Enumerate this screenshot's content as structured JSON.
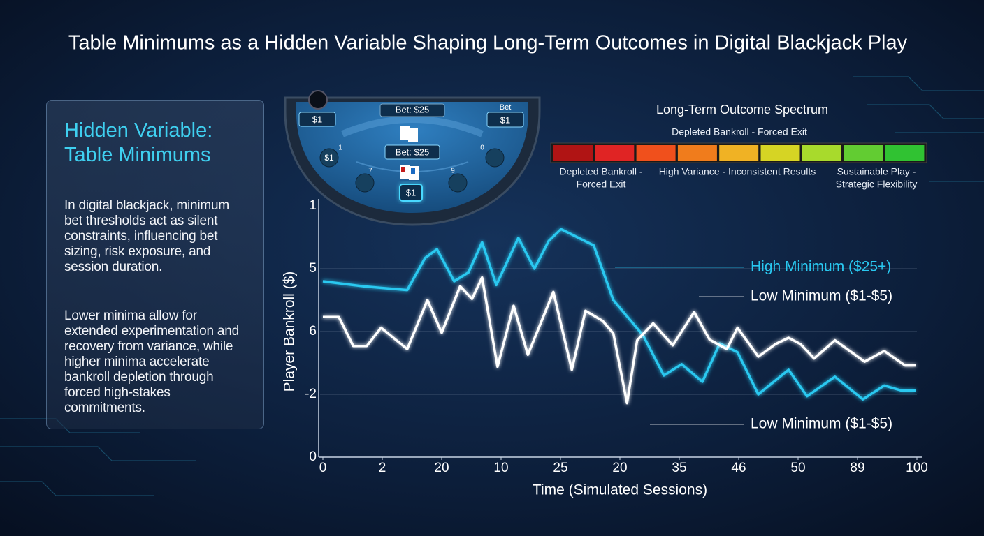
{
  "header": {
    "title": "Table Minimums as a Hidden Variable Shaping Long-Term Outcomes in Digital Blackjack Play"
  },
  "panel": {
    "heading": "Hidden Variable: Table Minimums",
    "paragraphs": [
      "In digital blackjack, minimum bet thresholds act as silent constraints, influencing bet sizing, risk exposure, and session duration.",
      "Lower minima allow for extended experimentation and recovery from variance, while higher minima accelerate bankroll depletion through forced high-stakes commitments."
    ]
  },
  "table_illustration": {
    "labels": [
      "$1",
      "Bet: $25",
      "Bet",
      "$1",
      "Bet: $25",
      "$1",
      "$1",
      "1",
      "0",
      "7",
      "9"
    ]
  },
  "spectrum": {
    "title": "Long-Term Outcome Spectrum",
    "subtitle": "Depleted Bankroll - Forced Exit",
    "colors": [
      "#b01414",
      "#e02424",
      "#f0501c",
      "#f07c1c",
      "#f0b224",
      "#d6d424",
      "#a8da2c",
      "#62cc32",
      "#30c232"
    ],
    "labels": [
      [
        "Depleted Bankroll -",
        "Forced Exit"
      ],
      [
        "High Variance - Inconsistent Results"
      ],
      [
        "Sustainable Play -",
        "Strategic Flexibility"
      ]
    ]
  },
  "chart_data": {
    "type": "line",
    "x_label": "Time (Simulated Sessions)",
    "y_label": "Player Bankroll ($)",
    "xlim": [
      0,
      10
    ],
    "xticks": [
      0,
      {
        "value": 1,
        "label": "2"
      },
      {
        "value": 2,
        "label": "20"
      },
      {
        "value": 3,
        "label": "10"
      },
      {
        "value": 4,
        "label": "25"
      },
      {
        "value": 5,
        "label": "20"
      },
      {
        "value": 6,
        "label": "35"
      },
      {
        "value": 7,
        "label": "46"
      },
      {
        "value": 8,
        "label": "50"
      },
      {
        "value": 9,
        "label": "89"
      },
      {
        "value": 10,
        "label": "100"
      }
    ],
    "ylim": [
      0,
      4
    ],
    "yticks": [
      0,
      {
        "value": 1,
        "label": "-2"
      },
      {
        "value": 2,
        "label": "6"
      },
      {
        "value": 3,
        "label": "5"
      },
      {
        "value": 4,
        "label": "1"
      }
    ],
    "grid": true,
    "annotations": [
      "High Minimum ($25+)",
      "Low Minimum ($1-$5)",
      "Low Minimum ($1-$5)"
    ],
    "series": [
      {
        "name": "High Minimum ($25+)",
        "color": "#29c8f0",
        "x": [
          0,
          0.68,
          1.42,
          1.72,
          1.92,
          2.21,
          2.45,
          2.68,
          2.92,
          3.29,
          3.56,
          3.8,
          4.01,
          4.56,
          4.89,
          5.39,
          5.74,
          6.04,
          6.39,
          6.68,
          6.98,
          7.33,
          7.84,
          8.15,
          8.62,
          9.09,
          9.45,
          9.74,
          9.98
        ],
        "values": [
          2.8,
          2.72,
          2.66,
          3.17,
          3.31,
          2.8,
          2.94,
          3.42,
          2.74,
          3.49,
          3.0,
          3.44,
          3.63,
          3.37,
          2.5,
          1.94,
          1.3,
          1.48,
          1.2,
          1.81,
          1.67,
          1.0,
          1.39,
          0.97,
          1.28,
          0.92,
          1.14,
          1.06,
          1.06
        ]
      },
      {
        "name": "Low Minimum ($1-$5)",
        "color": "#ffffff",
        "x": [
          0,
          0.27,
          0.51,
          0.74,
          0.98,
          1.42,
          1.76,
          2.0,
          2.31,
          2.51,
          2.68,
          2.94,
          3.21,
          3.45,
          3.88,
          4.19,
          4.42,
          4.71,
          4.89,
          5.12,
          5.29,
          5.56,
          5.89,
          6.25,
          6.51,
          6.8,
          6.98,
          7.33,
          7.62,
          7.84,
          8.04,
          8.27,
          8.62,
          9.12,
          9.45,
          9.8,
          9.98
        ],
        "values": [
          2.23,
          2.23,
          1.77,
          1.77,
          2.06,
          1.72,
          2.5,
          1.98,
          2.72,
          2.52,
          2.86,
          1.44,
          2.41,
          1.63,
          2.63,
          1.39,
          2.33,
          2.17,
          1.97,
          0.86,
          1.86,
          2.13,
          1.78,
          2.31,
          1.87,
          1.72,
          2.06,
          1.6,
          1.8,
          1.9,
          1.8,
          1.57,
          1.86,
          1.52,
          1.69,
          1.46,
          1.46
        ]
      }
    ]
  }
}
